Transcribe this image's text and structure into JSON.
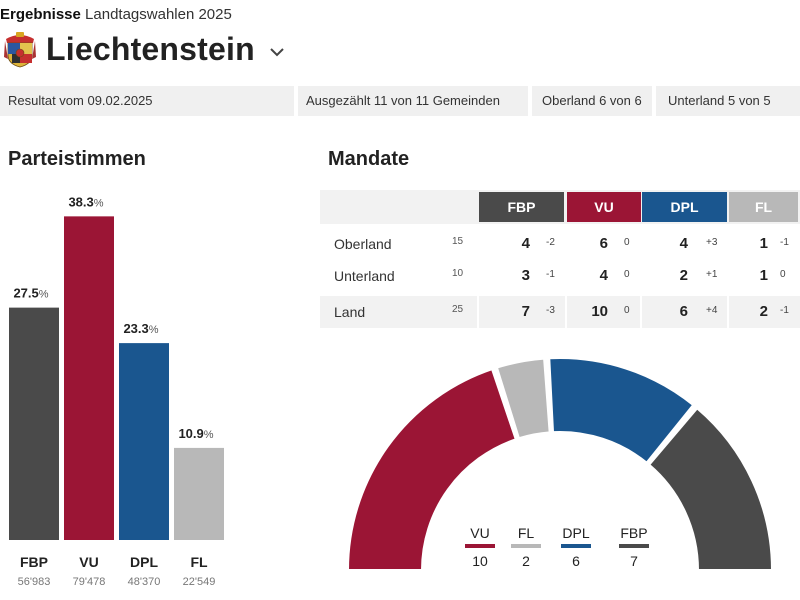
{
  "header": {
    "overline_bold": "Ergebnisse",
    "overline_rest": "Landtagswahlen 2025",
    "title": "Liechtenstein"
  },
  "info_bar": [
    {
      "text": "Resultat vom 09.02.2025"
    },
    {
      "text": "Ausgezählt 11 von 11 Gemeinden"
    },
    {
      "text": "Oberland 6 von 6"
    },
    {
      "text": "Unterland 5 von 5"
    }
  ],
  "sections": {
    "votes_title": "Parteistimmen",
    "seats_title": "Mandate"
  },
  "colors": {
    "FBP": "#4a4a4a",
    "VU": "#9b1535",
    "DPL": "#1a568f",
    "FL": "#b8b8b8"
  },
  "mandate_table": {
    "columns": [
      "FBP",
      "VU",
      "DPL",
      "FL"
    ],
    "rows": [
      {
        "region": "Oberland",
        "total": "15",
        "seats": [
          "4",
          "6",
          "4",
          "1"
        ],
        "diff": [
          "-2",
          "0",
          "+3",
          "-1"
        ]
      },
      {
        "region": "Unterland",
        "total": "10",
        "seats": [
          "3",
          "4",
          "2",
          "1"
        ],
        "diff": [
          "-1",
          "0",
          "+1",
          "0"
        ]
      },
      {
        "region": "Land",
        "total": "25",
        "seats": [
          "7",
          "10",
          "6",
          "2"
        ],
        "diff": [
          "-3",
          "0",
          "+4",
          "-1"
        ]
      }
    ]
  },
  "hemicycle_order": [
    "VU",
    "FL",
    "DPL",
    "FBP"
  ],
  "chart_data": [
    {
      "type": "bar",
      "title": "Parteistimmen",
      "categories": [
        "FBP",
        "VU",
        "DPL",
        "FL"
      ],
      "values": [
        27.5,
        38.3,
        23.3,
        10.9
      ],
      "value_labels": [
        "27.5",
        "38.3",
        "23.3",
        "10.9"
      ],
      "unit": "%",
      "votes": [
        "56'983",
        "79'478",
        "48'370",
        "22'549"
      ],
      "colors": [
        "#4a4a4a",
        "#9b1535",
        "#1a568f",
        "#b8b8b8"
      ]
    },
    {
      "type": "pie",
      "subtype": "hemicycle",
      "title": "Mandate",
      "categories": [
        "VU",
        "FL",
        "DPL",
        "FBP"
      ],
      "values": [
        10,
        2,
        6,
        7
      ],
      "value_labels": [
        "10",
        "2",
        "6",
        "7"
      ],
      "colors": [
        "#9b1535",
        "#b8b8b8",
        "#1a568f",
        "#4a4a4a"
      ]
    }
  ]
}
